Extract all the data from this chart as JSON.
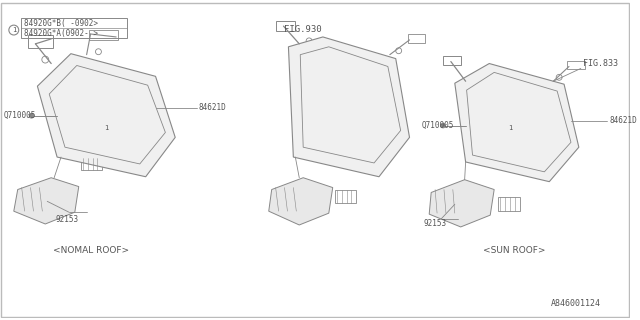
{
  "background_color": "#ffffff",
  "line_color": "#888888",
  "text_color": "#555555",
  "part_number": "A846001124",
  "legend_text1": "84920G*B( -0902>",
  "legend_text2": "84920G*A(0902- >",
  "fig_label_center": "FIG.930",
  "fig_label_right": "FIG.833",
  "caption_left": "<NOMAL ROOF>",
  "caption_right": "<SUN ROOF>",
  "label_84621D": "84621D",
  "label_Q710005": "Q710005",
  "label_92153": "92153"
}
